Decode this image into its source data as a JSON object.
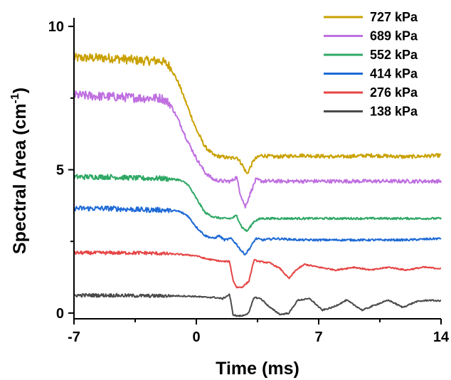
{
  "chart_data": {
    "type": "line",
    "title": "",
    "xlabel": "Time (ms)",
    "ylabel": "Spectral Area (cm",
    "ylabel_sup": "-1",
    "ylabel_end": ")",
    "xlim": [
      -7,
      14
    ],
    "ylim": [
      -0.2,
      10.3
    ],
    "x_ticks": [
      -7,
      0,
      7,
      14
    ],
    "y_ticks": [
      0,
      5,
      10
    ],
    "grid": false,
    "legend_position": "top-right",
    "series": [
      {
        "name": "727 kPa",
        "color": "#C9A100",
        "x": [
          -7,
          -5,
          -3,
          -2,
          -1.5,
          -1,
          -0.5,
          0,
          0.5,
          1,
          1.5,
          2,
          2.3,
          2.6,
          2.9,
          3.3,
          3.7,
          4.5,
          6,
          8,
          10,
          12,
          14
        ],
        "y": [
          8.9,
          8.9,
          8.8,
          8.8,
          8.6,
          8.0,
          7.2,
          6.4,
          5.8,
          5.5,
          5.45,
          5.4,
          5.45,
          5.2,
          4.85,
          5.35,
          5.5,
          5.45,
          5.5,
          5.45,
          5.5,
          5.45,
          5.5
        ]
      },
      {
        "name": "689 kPa",
        "color": "#BF6FE0",
        "x": [
          -7,
          -5,
          -3,
          -2,
          -1.5,
          -1,
          -0.5,
          0,
          0.5,
          1,
          1.5,
          2,
          2.3,
          2.5,
          2.8,
          3.1,
          3.4,
          3.8,
          4.5,
          6,
          8,
          10,
          12,
          14
        ],
        "y": [
          7.6,
          7.55,
          7.5,
          7.5,
          7.3,
          6.7,
          6.0,
          5.4,
          4.9,
          4.65,
          4.6,
          4.6,
          4.75,
          4.2,
          3.7,
          4.2,
          4.65,
          4.6,
          4.6,
          4.6,
          4.6,
          4.6,
          4.6,
          4.6
        ]
      },
      {
        "name": "552 kPa",
        "color": "#2FA865",
        "x": [
          -7,
          -5,
          -3,
          -2,
          -1,
          -0.5,
          0,
          0.5,
          1,
          1.5,
          2,
          2.3,
          2.6,
          2.9,
          3.3,
          3.7,
          4.5,
          6,
          8,
          10,
          12,
          14
        ],
        "y": [
          4.75,
          4.75,
          4.7,
          4.7,
          4.65,
          4.5,
          4.0,
          3.5,
          3.35,
          3.3,
          3.3,
          3.4,
          3.0,
          2.85,
          3.2,
          3.3,
          3.3,
          3.3,
          3.3,
          3.3,
          3.3,
          3.3
        ]
      },
      {
        "name": "414 kPa",
        "color": "#1F6AD6",
        "x": [
          -7,
          -5,
          -3,
          -2,
          -1,
          -0.5,
          0,
          0.5,
          1,
          1.3,
          1.6,
          2,
          2.3,
          2.6,
          2.8,
          3.1,
          3.4,
          3.8,
          4.5,
          6,
          8,
          10,
          12,
          14
        ],
        "y": [
          3.65,
          3.65,
          3.6,
          3.6,
          3.55,
          3.4,
          3.0,
          2.7,
          2.6,
          2.7,
          2.55,
          2.6,
          2.4,
          2.15,
          2.05,
          2.3,
          2.6,
          2.55,
          2.6,
          2.55,
          2.55,
          2.55,
          2.55,
          2.6
        ]
      },
      {
        "name": "276 kPa",
        "color": "#E64444",
        "x": [
          -7,
          -5,
          -3,
          -1,
          0,
          0.5,
          1,
          1.5,
          1.9,
          2.1,
          2.3,
          2.6,
          3.0,
          3.3,
          3.6,
          4.2,
          4.8,
          5.3,
          5.7,
          6.2,
          7,
          8,
          9,
          10,
          11,
          12,
          13,
          14
        ],
        "y": [
          2.1,
          2.1,
          2.1,
          2.05,
          2.0,
          1.9,
          1.85,
          1.8,
          1.8,
          1.15,
          0.9,
          0.9,
          1.1,
          1.85,
          1.8,
          1.75,
          1.55,
          1.2,
          1.5,
          1.7,
          1.6,
          1.5,
          1.6,
          1.5,
          1.6,
          1.5,
          1.6,
          1.55
        ]
      },
      {
        "name": "138 kPa",
        "color": "#4A4A4A",
        "x": [
          -7,
          -5,
          -3,
          -1,
          0,
          0.5,
          1,
          1.5,
          1.9,
          2.1,
          2.3,
          2.6,
          3.0,
          3.3,
          3.7,
          4.2,
          4.8,
          5.3,
          5.8,
          6.5,
          7.2,
          7.8,
          8.6,
          9.5,
          10.3,
          11,
          11.8,
          12.6,
          13.3,
          14
        ],
        "y": [
          0.62,
          0.62,
          0.6,
          0.6,
          0.58,
          0.55,
          0.55,
          0.5,
          0.65,
          -0.05,
          -0.1,
          -0.1,
          0.0,
          0.55,
          0.5,
          0.2,
          -0.05,
          0.0,
          0.45,
          0.5,
          0.1,
          0.2,
          0.45,
          0.1,
          0.3,
          0.45,
          0.2,
          0.4,
          0.45,
          0.42
        ]
      }
    ]
  }
}
